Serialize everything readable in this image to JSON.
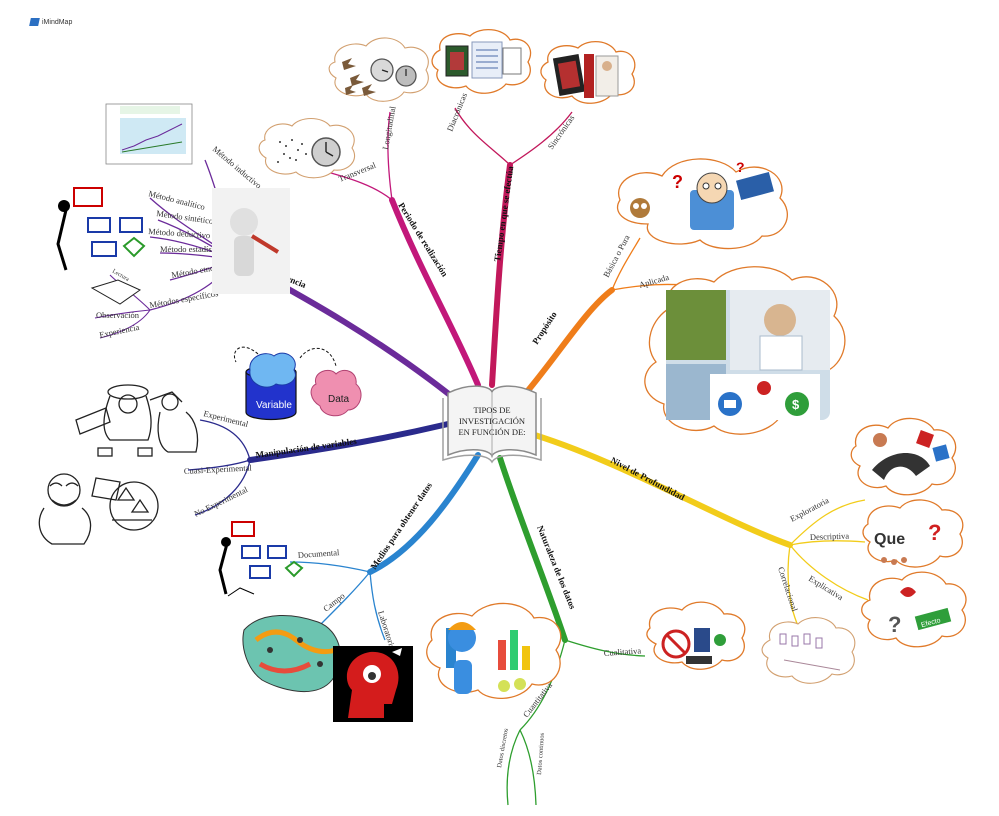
{
  "logo": {
    "text": "iMindMap"
  },
  "center": {
    "lines": [
      "TIPOS DE",
      "INVESTIGACIÓN",
      "EN FUNCIÓN DE:"
    ]
  },
  "colors": {
    "periodo": "#c2187a",
    "tiempo": "#c2185b",
    "proposito": "#ef7d1a",
    "profundidad": "#f2cc1a",
    "naturaleza": "#2e9e2e",
    "medios": "#2a84cf",
    "manipulacion": "#2a2a8c",
    "inferencia": "#6b2b9a",
    "cloud_border": "#e07a2a"
  },
  "branches": {
    "periodo": {
      "label": "Periodo de realización",
      "sub": [
        "Transversal",
        "Longitudinal"
      ]
    },
    "tiempo": {
      "label": "Tiempo en que se efectúa",
      "sub": [
        "Diacrónicas",
        "Sincrónicas"
      ]
    },
    "proposito": {
      "label": "Propósito",
      "sub": [
        "Básica o Pura",
        "Aplicada"
      ]
    },
    "profundidad": {
      "label": "Nivel de Profundidad",
      "sub": [
        "Exploratoria",
        "Descriptiva",
        "Explicativa",
        "Correlacional"
      ]
    },
    "naturaleza": {
      "label": "Naturaleza de los datos",
      "sub": [
        "Cualitativa",
        "Cuantitativa",
        "Datos discretos",
        "Datos continuos"
      ]
    },
    "medios": {
      "label": "Medios para obtener datos",
      "sub": [
        "Documental",
        "Campo",
        "Laboratorio"
      ]
    },
    "manipulacion": {
      "label": "Manipulación de variables",
      "sub": [
        "Experimental",
        "Cuasi-Experimental",
        "No Experimental"
      ]
    },
    "inferencia": {
      "label": "Tipo de inferencia",
      "sub": [
        "Método inductivo",
        "Método analítico",
        "Método sintético",
        "Método deductivo",
        "Método estadístico",
        "Método etnográfico",
        "Métodos específicos",
        "Observación",
        "Experiencia",
        "Lectura"
      ]
    }
  },
  "image_labels": {
    "data_tag": "Data",
    "variable_tag": "Variable",
    "que_tag": "Que",
    "efecto_tag": "Efecto"
  }
}
